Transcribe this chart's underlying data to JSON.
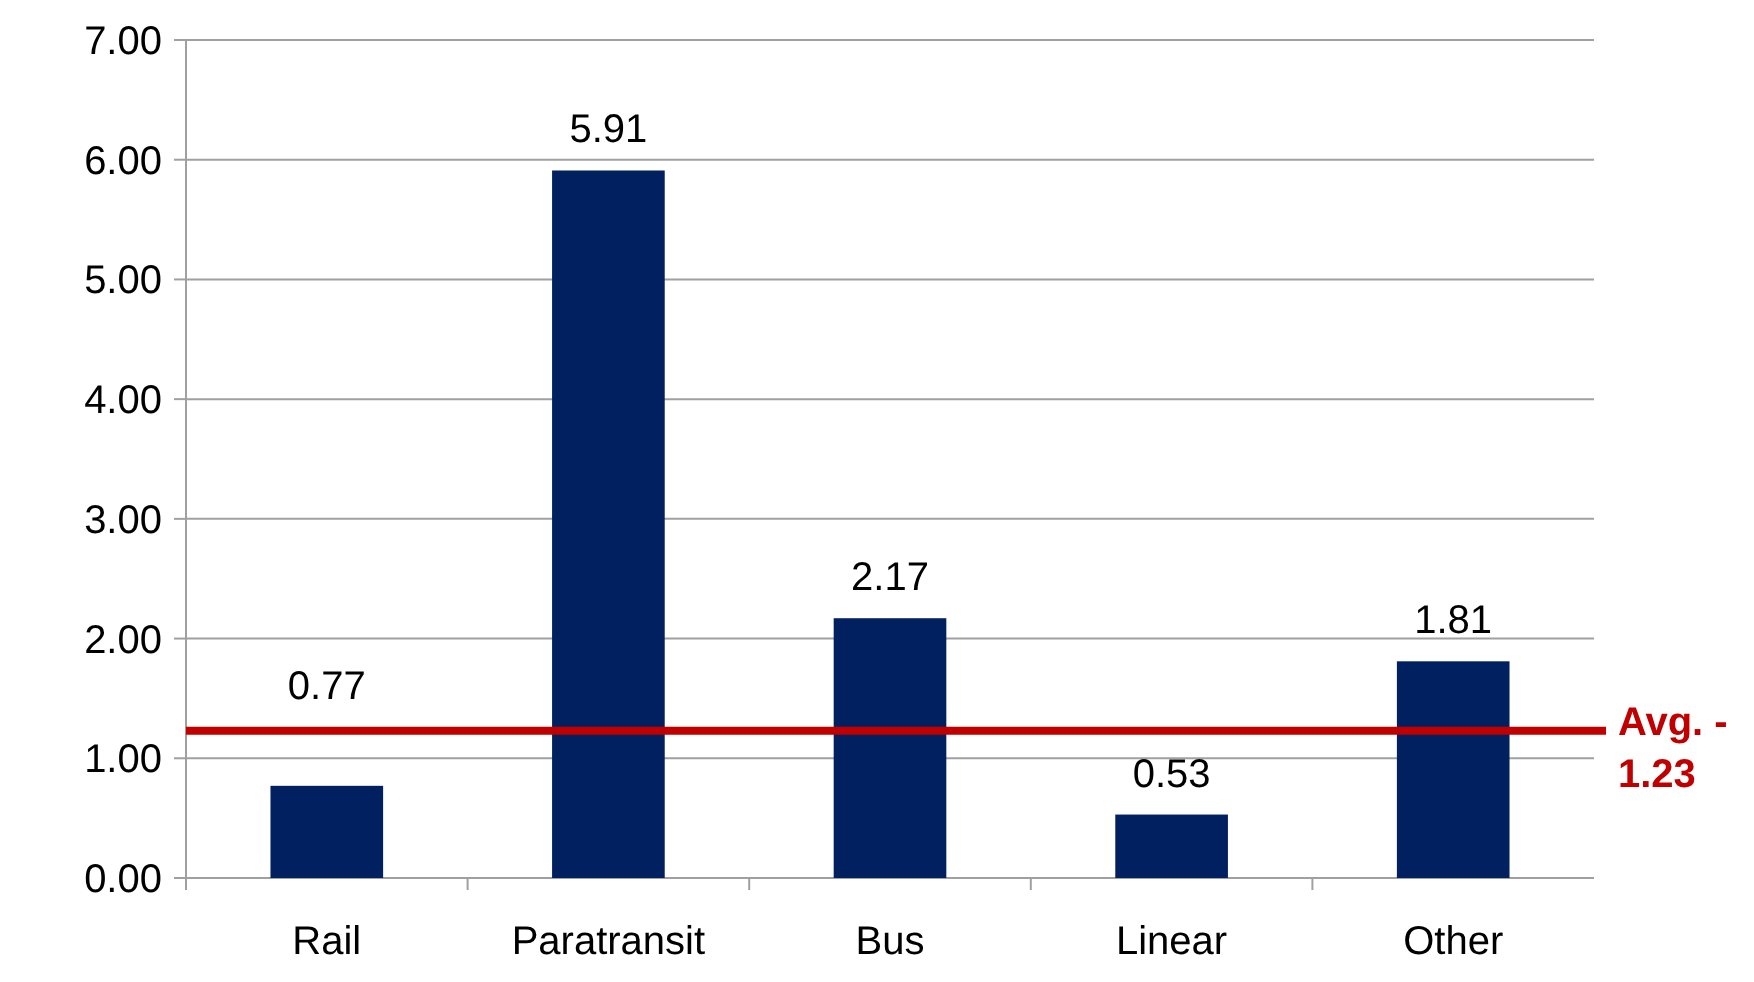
{
  "chart_data": {
    "type": "bar",
    "categories": [
      "Rail",
      "Paratransit",
      "Bus",
      "Linear",
      "Other"
    ],
    "values": [
      0.77,
      5.91,
      2.17,
      0.53,
      1.81
    ],
    "color": "#002060",
    "data_labels": true,
    "ylim": [
      0,
      7
    ],
    "yticks": [
      {
        "value": 0,
        "label": "0.00"
      },
      {
        "value": 1,
        "label": "1.00"
      },
      {
        "value": 2,
        "label": "2.00"
      },
      {
        "value": 3,
        "label": "3.00"
      },
      {
        "value": 4,
        "label": "4.00"
      },
      {
        "value": 5,
        "label": "5.00"
      },
      {
        "value": 6,
        "label": "6.00"
      },
      {
        "value": 7,
        "label": "7.00"
      }
    ],
    "grid": "y",
    "ref_lines": [
      {
        "axis": "y",
        "value": 1.23,
        "label": "Avg. - 1.23",
        "color": "#c00000"
      }
    ]
  }
}
